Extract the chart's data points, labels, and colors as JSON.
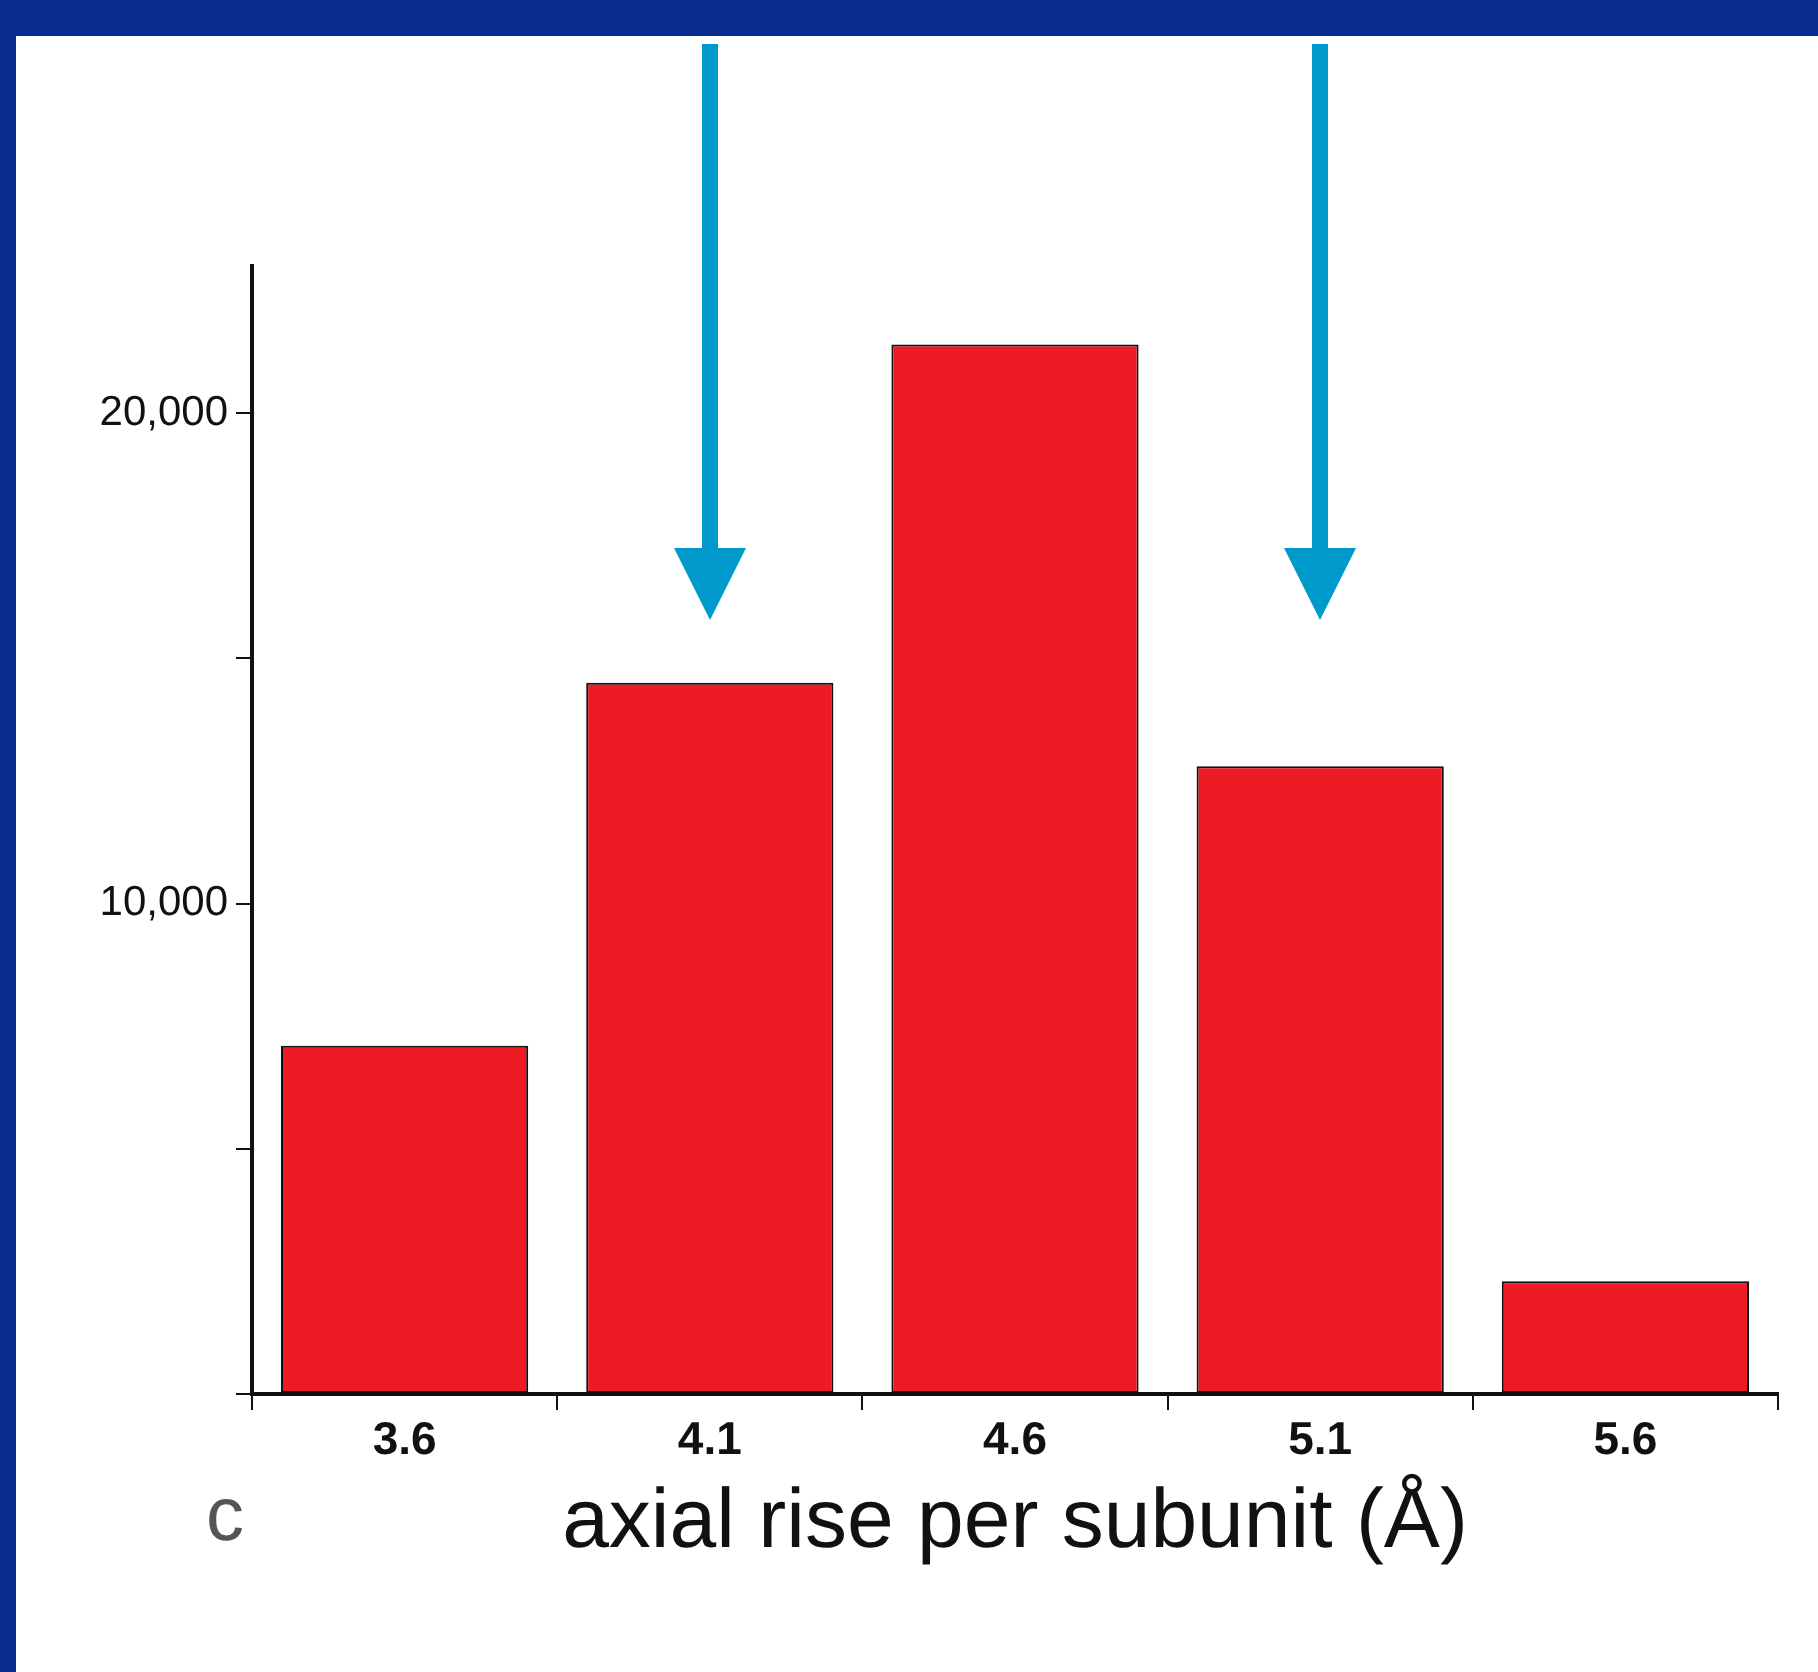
{
  "chart_data": {
    "type": "bar",
    "xlabel": "axial rise per subunit (Å)",
    "annotations": [
      "c"
    ],
    "categories": [
      "3.6",
      "4.1",
      "4.6",
      "5.1",
      "5.6"
    ],
    "values": [
      7100,
      14500,
      21400,
      12800,
      2300
    ],
    "color": "#ed1c24",
    "ylim": [
      0,
      23000
    ],
    "yticks": [
      {
        "value": 0,
        "label": null
      },
      {
        "value": 5000,
        "label": null
      },
      {
        "value": 10000,
        "label": "10,000"
      },
      {
        "value": 15000,
        "label": null
      },
      {
        "value": 20000,
        "label": "20,000"
      }
    ],
    "grid": false
  }
}
